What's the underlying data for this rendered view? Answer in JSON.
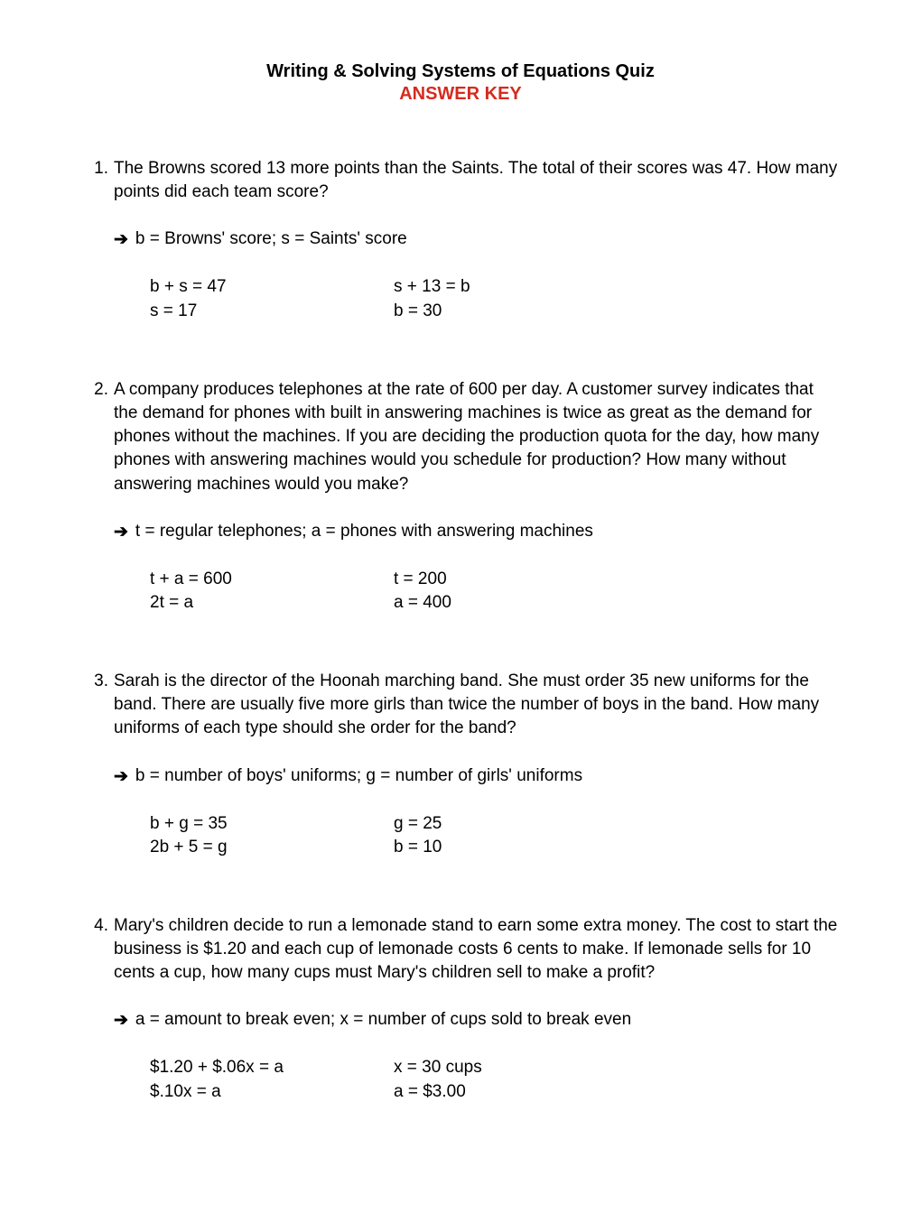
{
  "title": "Writing & Solving Systems of Equations Quiz",
  "subtitle": "ANSWER KEY",
  "questions": [
    {
      "num": "1.",
      "text": "The Browns scored 13 more points than the Saints.  The total of their scores was 47.  How many points did each team score?",
      "def": "b = Browns' score; s = Saints' score",
      "eq_l1": "b + s = 47",
      "eq_l2": "s = 17",
      "eq_r1": "s + 13 = b",
      "eq_r2": "b = 30"
    },
    {
      "num": "2.",
      "text": "A company produces telephones at the rate of 600 per day.  A customer survey indicates that the demand for phones with built in answering machines is twice as great as the demand for phones without the machines.  If you are deciding the production quota for the day, how many phones with answering machines would you schedule for production?  How many without answering machines would you make?",
      "def": "t = regular telephones; a = phones with answering machines",
      "eq_l1": "t + a = 600",
      "eq_l2": "2t = a",
      "eq_r1": "t = 200",
      "eq_r2": "a = 400"
    },
    {
      "num": "3.",
      "text": "Sarah is the director of the Hoonah marching band.  She must order 35 new uniforms for the band.  There are usually five more girls than twice the number of boys in the band.  How many uniforms of each type should she order for the band?",
      "def": "b = number of boys' uniforms; g = number of girls' uniforms",
      "eq_l1": "b + g = 35",
      "eq_l2": "2b + 5 = g",
      "eq_r1": "g = 25",
      "eq_r2": "b = 10"
    },
    {
      "num": "4.",
      "text": "Mary's children decide to run a lemonade stand to earn some extra money.  The cost to start the business is $1.20 and each cup of lemonade costs 6 cents to make.  If lemonade sells for 10 cents a cup, how many cups must Mary's children sell to make a profit?",
      "def": "a = amount to break even; x = number of cups sold to break even",
      "eq_l1": "$1.20 + $.06x = a",
      "eq_l2": "$.10x = a",
      "eq_r1": "x = 30 cups",
      "eq_r2": "a = $3.00"
    }
  ]
}
